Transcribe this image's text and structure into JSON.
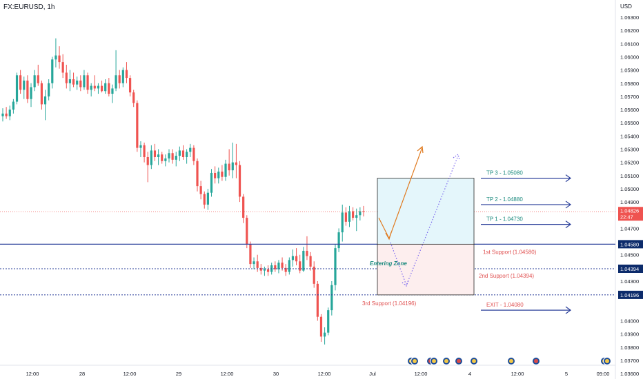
{
  "symbol": "FX:EURUSD, 1h",
  "chart_data": {
    "type": "candlestick",
    "currency": "USD",
    "ylim": [
      1.036,
      1.064
    ],
    "y_ticks": [
      "1.06300",
      "1.06200",
      "1.06100",
      "1.06000",
      "1.05900",
      "1.05800",
      "1.05700",
      "1.05600",
      "1.05500",
      "1.05400",
      "1.05300",
      "1.05200",
      "1.05100",
      "1.05000",
      "1.04900",
      "1.04700",
      "1.04500",
      "1.04300",
      "1.04000",
      "1.03900",
      "1.03800",
      "1.03700",
      "1.03600"
    ],
    "x_ticks": [
      "12:00",
      "28",
      "12:00",
      "29",
      "12:00",
      "30",
      "12:00",
      "Jul",
      "12:00",
      "4",
      "12:00",
      "5",
      "09:00"
    ],
    "last_price": "1.04826",
    "countdown": "22:47",
    "price_tags": [
      "1.04580",
      "1.04394",
      "1.04196"
    ],
    "levels": [
      {
        "label": "TP 3 - 1.05080",
        "value": 1.0508
      },
      {
        "label": "TP 2 - 1.04880",
        "value": 1.0488
      },
      {
        "label": "TP 1 - 1.04730",
        "value": 1.0473
      },
      {
        "label": "1st Support (1.04580)",
        "value": 1.0458
      },
      {
        "label": "2nd Support (1.04394)",
        "value": 1.04394
      },
      {
        "label": "3rd Support (1.04196)",
        "value": 1.04196
      },
      {
        "label": "EXIT - 1.04080",
        "value": 1.0408
      }
    ],
    "zone_label": "Entering Zone",
    "candles": [
      {
        "o": 1.0555,
        "h": 1.0561,
        "l": 1.0551,
        "c": 1.0557
      },
      {
        "o": 1.0557,
        "h": 1.0562,
        "l": 1.0553,
        "c": 1.0555
      },
      {
        "o": 1.0555,
        "h": 1.0563,
        "l": 1.0552,
        "c": 1.056
      },
      {
        "o": 1.056,
        "h": 1.0568,
        "l": 1.0557,
        "c": 1.0566
      },
      {
        "o": 1.0566,
        "h": 1.0588,
        "l": 1.0564,
        "c": 1.0586
      },
      {
        "o": 1.0586,
        "h": 1.059,
        "l": 1.0572,
        "c": 1.0575
      },
      {
        "o": 1.0575,
        "h": 1.0585,
        "l": 1.0568,
        "c": 1.0582
      },
      {
        "o": 1.0582,
        "h": 1.0586,
        "l": 1.0565,
        "c": 1.0568
      },
      {
        "o": 1.0568,
        "h": 1.058,
        "l": 1.0562,
        "c": 1.0577
      },
      {
        "o": 1.0577,
        "h": 1.059,
        "l": 1.0574,
        "c": 1.0586
      },
      {
        "o": 1.0586,
        "h": 1.0594,
        "l": 1.0578,
        "c": 1.058
      },
      {
        "o": 1.058,
        "h": 1.0582,
        "l": 1.056,
        "c": 1.0564
      },
      {
        "o": 1.0564,
        "h": 1.0575,
        "l": 1.0552,
        "c": 1.057
      },
      {
        "o": 1.057,
        "h": 1.0583,
        "l": 1.0567,
        "c": 1.058
      },
      {
        "o": 1.058,
        "h": 1.06,
        "l": 1.0576,
        "c": 1.0598
      },
      {
        "o": 1.0598,
        "h": 1.0614,
        "l": 1.0592,
        "c": 1.0601
      },
      {
        "o": 1.0601,
        "h": 1.0608,
        "l": 1.0591,
        "c": 1.0596
      },
      {
        "o": 1.0596,
        "h": 1.0602,
        "l": 1.0584,
        "c": 1.0588
      },
      {
        "o": 1.0588,
        "h": 1.0594,
        "l": 1.0576,
        "c": 1.058
      },
      {
        "o": 1.058,
        "h": 1.059,
        "l": 1.0574,
        "c": 1.0583
      },
      {
        "o": 1.0583,
        "h": 1.0588,
        "l": 1.0577,
        "c": 1.0579
      },
      {
        "o": 1.0579,
        "h": 1.0585,
        "l": 1.0575,
        "c": 1.0582
      },
      {
        "o": 1.0582,
        "h": 1.0586,
        "l": 1.0574,
        "c": 1.0577
      },
      {
        "o": 1.0577,
        "h": 1.059,
        "l": 1.0575,
        "c": 1.0586
      },
      {
        "o": 1.0586,
        "h": 1.0588,
        "l": 1.0572,
        "c": 1.0575
      },
      {
        "o": 1.0575,
        "h": 1.058,
        "l": 1.057,
        "c": 1.0578
      },
      {
        "o": 1.0578,
        "h": 1.0586,
        "l": 1.0574,
        "c": 1.0576
      },
      {
        "o": 1.0576,
        "h": 1.058,
        "l": 1.0572,
        "c": 1.0578
      },
      {
        "o": 1.0578,
        "h": 1.0582,
        "l": 1.0573,
        "c": 1.0574
      },
      {
        "o": 1.0574,
        "h": 1.0583,
        "l": 1.0572,
        "c": 1.058
      },
      {
        "o": 1.058,
        "h": 1.0584,
        "l": 1.057,
        "c": 1.0572
      },
      {
        "o": 1.0572,
        "h": 1.0579,
        "l": 1.0565,
        "c": 1.0576
      },
      {
        "o": 1.0576,
        "h": 1.0605,
        "l": 1.0574,
        "c": 1.0586
      },
      {
        "o": 1.0586,
        "h": 1.059,
        "l": 1.0576,
        "c": 1.058
      },
      {
        "o": 1.058,
        "h": 1.0592,
        "l": 1.0577,
        "c": 1.059
      },
      {
        "o": 1.059,
        "h": 1.0596,
        "l": 1.058,
        "c": 1.0584
      },
      {
        "o": 1.0584,
        "h": 1.0586,
        "l": 1.057,
        "c": 1.0573
      },
      {
        "o": 1.0573,
        "h": 1.0575,
        "l": 1.0562,
        "c": 1.0565
      },
      {
        "o": 1.0565,
        "h": 1.0567,
        "l": 1.0528,
        "c": 1.0531
      },
      {
        "o": 1.0531,
        "h": 1.0536,
        "l": 1.0524,
        "c": 1.0533
      },
      {
        "o": 1.0533,
        "h": 1.0535,
        "l": 1.052,
        "c": 1.0524
      },
      {
        "o": 1.0524,
        "h": 1.0528,
        "l": 1.0505,
        "c": 1.0518
      },
      {
        "o": 1.0518,
        "h": 1.0533,
        "l": 1.0515,
        "c": 1.0529
      },
      {
        "o": 1.0529,
        "h": 1.0534,
        "l": 1.0521,
        "c": 1.0524
      },
      {
        "o": 1.0524,
        "h": 1.053,
        "l": 1.0518,
        "c": 1.0526
      },
      {
        "o": 1.0526,
        "h": 1.0528,
        "l": 1.0519,
        "c": 1.0521
      },
      {
        "o": 1.0521,
        "h": 1.0526,
        "l": 1.0517,
        "c": 1.0523
      },
      {
        "o": 1.0523,
        "h": 1.053,
        "l": 1.052,
        "c": 1.0527
      },
      {
        "o": 1.0527,
        "h": 1.053,
        "l": 1.0519,
        "c": 1.0522
      },
      {
        "o": 1.0522,
        "h": 1.0528,
        "l": 1.0517,
        "c": 1.0525
      },
      {
        "o": 1.0525,
        "h": 1.0532,
        "l": 1.0521,
        "c": 1.0529
      },
      {
        "o": 1.0529,
        "h": 1.0533,
        "l": 1.0522,
        "c": 1.0524
      },
      {
        "o": 1.0524,
        "h": 1.053,
        "l": 1.0519,
        "c": 1.0528
      },
      {
        "o": 1.0528,
        "h": 1.0534,
        "l": 1.0524,
        "c": 1.0531
      },
      {
        "o": 1.0531,
        "h": 1.0533,
        "l": 1.0518,
        "c": 1.0521
      },
      {
        "o": 1.0521,
        "h": 1.0523,
        "l": 1.0498,
        "c": 1.0502
      },
      {
        "o": 1.0502,
        "h": 1.0506,
        "l": 1.0492,
        "c": 1.0496
      },
      {
        "o": 1.0496,
        "h": 1.0498,
        "l": 1.0485,
        "c": 1.0488
      },
      {
        "o": 1.0488,
        "h": 1.05,
        "l": 1.0484,
        "c": 1.0497
      },
      {
        "o": 1.0497,
        "h": 1.0515,
        "l": 1.0494,
        "c": 1.0512
      },
      {
        "o": 1.0512,
        "h": 1.0517,
        "l": 1.0504,
        "c": 1.0508
      },
      {
        "o": 1.0508,
        "h": 1.0516,
        "l": 1.0504,
        "c": 1.0513
      },
      {
        "o": 1.0513,
        "h": 1.0518,
        "l": 1.0506,
        "c": 1.0509
      },
      {
        "o": 1.0509,
        "h": 1.0522,
        "l": 1.0506,
        "c": 1.0519
      },
      {
        "o": 1.0519,
        "h": 1.053,
        "l": 1.051,
        "c": 1.0514
      },
      {
        "o": 1.0514,
        "h": 1.0535,
        "l": 1.0508,
        "c": 1.052
      },
      {
        "o": 1.052,
        "h": 1.0534,
        "l": 1.0508,
        "c": 1.0518
      },
      {
        "o": 1.0518,
        "h": 1.0521,
        "l": 1.049,
        "c": 1.0494
      },
      {
        "o": 1.0494,
        "h": 1.0496,
        "l": 1.0474,
        "c": 1.0478
      },
      {
        "o": 1.0478,
        "h": 1.048,
        "l": 1.0455,
        "c": 1.0458
      },
      {
        "o": 1.0458,
        "h": 1.046,
        "l": 1.044,
        "c": 1.0443
      },
      {
        "o": 1.0443,
        "h": 1.0448,
        "l": 1.0439,
        "c": 1.0445
      },
      {
        "o": 1.0445,
        "h": 1.045,
        "l": 1.0437,
        "c": 1.044
      },
      {
        "o": 1.044,
        "h": 1.0443,
        "l": 1.0435,
        "c": 1.0438
      },
      {
        "o": 1.0438,
        "h": 1.0441,
        "l": 1.0434,
        "c": 1.0439
      },
      {
        "o": 1.0439,
        "h": 1.0442,
        "l": 1.0434,
        "c": 1.0437
      },
      {
        "o": 1.0437,
        "h": 1.0444,
        "l": 1.0435,
        "c": 1.0442
      },
      {
        "o": 1.0442,
        "h": 1.0445,
        "l": 1.0437,
        "c": 1.0439
      },
      {
        "o": 1.0439,
        "h": 1.0446,
        "l": 1.0436,
        "c": 1.0444
      },
      {
        "o": 1.0444,
        "h": 1.0448,
        "l": 1.0438,
        "c": 1.044
      },
      {
        "o": 1.044,
        "h": 1.0443,
        "l": 1.0434,
        "c": 1.0437
      },
      {
        "o": 1.0437,
        "h": 1.0448,
        "l": 1.0435,
        "c": 1.0446
      },
      {
        "o": 1.0446,
        "h": 1.0454,
        "l": 1.0441,
        "c": 1.0449
      },
      {
        "o": 1.0449,
        "h": 1.0455,
        "l": 1.0442,
        "c": 1.0445
      },
      {
        "o": 1.0445,
        "h": 1.045,
        "l": 1.0436,
        "c": 1.0438
      },
      {
        "o": 1.0438,
        "h": 1.0456,
        "l": 1.0437,
        "c": 1.0453
      },
      {
        "o": 1.0453,
        "h": 1.0464,
        "l": 1.0446,
        "c": 1.0449
      },
      {
        "o": 1.0449,
        "h": 1.0452,
        "l": 1.0438,
        "c": 1.0441
      },
      {
        "o": 1.0441,
        "h": 1.0445,
        "l": 1.0425,
        "c": 1.0428
      },
      {
        "o": 1.0428,
        "h": 1.043,
        "l": 1.04,
        "c": 1.0403
      },
      {
        "o": 1.0403,
        "h": 1.0405,
        "l": 1.0384,
        "c": 1.0388
      },
      {
        "o": 1.0388,
        "h": 1.0395,
        "l": 1.0382,
        "c": 1.0391
      },
      {
        "o": 1.0391,
        "h": 1.041,
        "l": 1.0389,
        "c": 1.0408
      },
      {
        "o": 1.0408,
        "h": 1.043,
        "l": 1.0404,
        "c": 1.0427
      },
      {
        "o": 1.0427,
        "h": 1.0458,
        "l": 1.0423,
        "c": 1.0455
      },
      {
        "o": 1.0455,
        "h": 1.047,
        "l": 1.0452,
        "c": 1.0467
      },
      {
        "o": 1.0467,
        "h": 1.0488,
        "l": 1.046,
        "c": 1.0482
      },
      {
        "o": 1.0482,
        "h": 1.0486,
        "l": 1.0472,
        "c": 1.0475
      },
      {
        "o": 1.0475,
        "h": 1.0487,
        "l": 1.0471,
        "c": 1.0483
      },
      {
        "o": 1.0483,
        "h": 1.0486,
        "l": 1.0476,
        "c": 1.0478
      },
      {
        "o": 1.0478,
        "h": 1.0485,
        "l": 1.0468,
        "c": 1.048
      },
      {
        "o": 1.048,
        "h": 1.0486,
        "l": 1.0476,
        "c": 1.0483
      },
      {
        "o": 1.0483,
        "h": 1.0487,
        "l": 1.0479,
        "c": 1.04826
      }
    ]
  },
  "colors": {
    "bull": "#26a69a",
    "bear": "#ef5350",
    "level_line": "#2a3f9a",
    "profit_fill": "#e4f6fb",
    "loss_fill": "#fdeeee",
    "tp_text": "#1b8a7e",
    "support_text": "#e05050",
    "orange_arrow": "#e07a1f",
    "purple_arrow": "#7b68ee",
    "price_tag": "#ef5350",
    "level_tag": "#0c2b6b"
  },
  "event_icons": [
    "flag-icon",
    "flag-icon",
    "flag-icon",
    "flag-icon",
    "flag-icon",
    "flag-icon",
    "flag-icon",
    "flag-icon",
    "flag-icon"
  ]
}
